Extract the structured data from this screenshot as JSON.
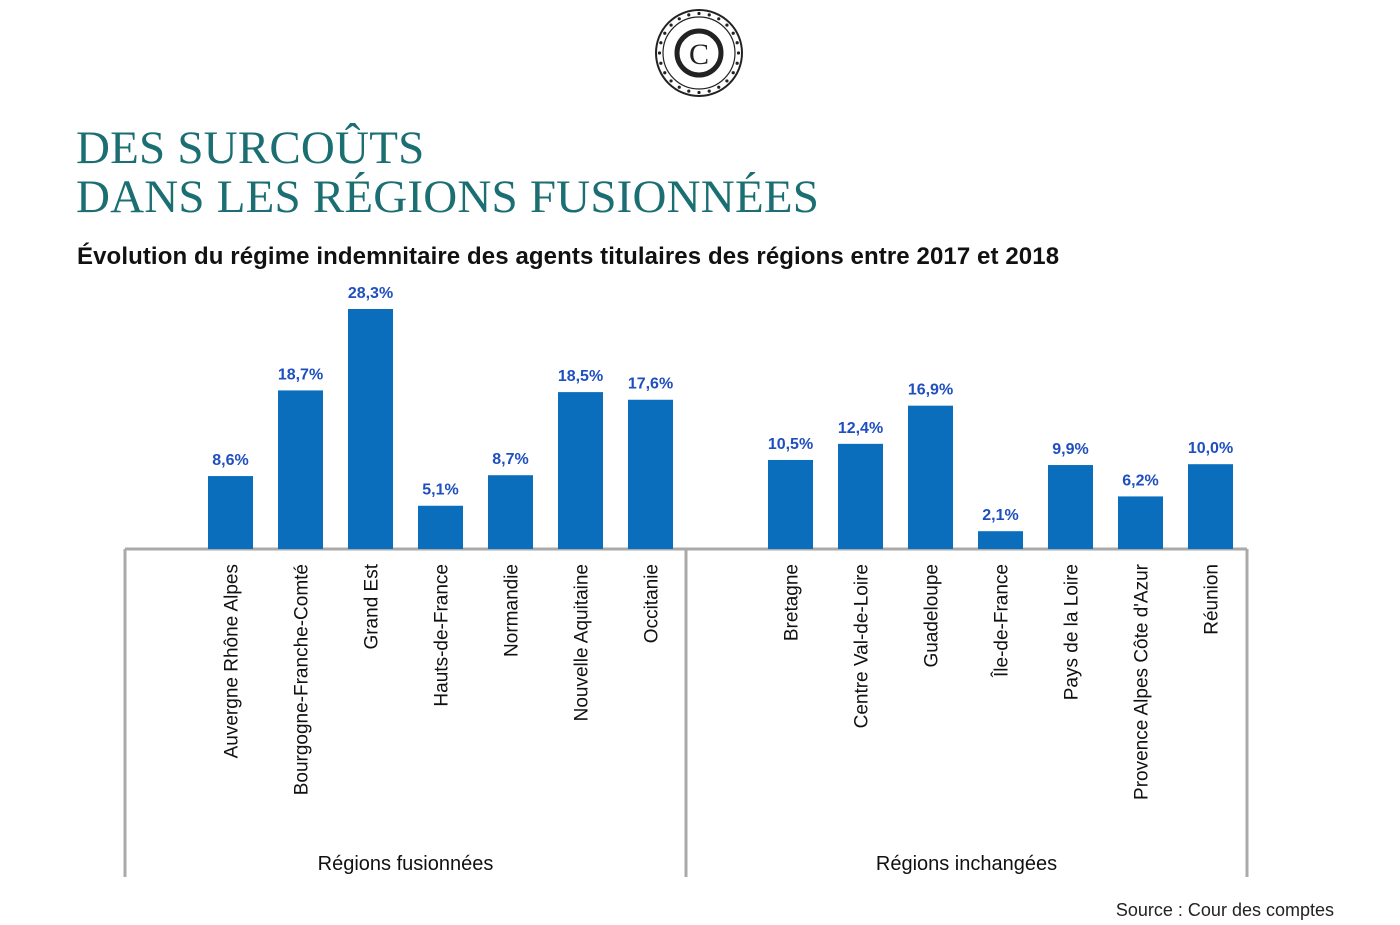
{
  "logo": {
    "letter": "C",
    "icon": "cour-des-comptes-seal-icon"
  },
  "title": {
    "line1": "DES SURCOÛTS",
    "line2": "DANS LES RÉGIONS FUSIONNÉES"
  },
  "subtitle": "Évolution du régime indemnitaire des agents titulaires des régions entre 2017 et 2018",
  "source": "Source : Cour des comptes",
  "colors": {
    "bar": "#0a6ebd",
    "value_label": "#1f4fbf",
    "title": "#1b6f73",
    "axis": "#aaaaaa"
  },
  "chart_data": {
    "type": "bar",
    "ylim": [
      0,
      30
    ],
    "grid": false,
    "groups": [
      {
        "name": "Régions fusionnées",
        "categories": [
          "Auvergne Rhône Alpes",
          "Bourgogne-Franche-Comté",
          "Grand Est",
          "Hauts-de-France",
          "Normandie",
          "Nouvelle Aquitaine",
          "Occitanie"
        ],
        "values": [
          8.6,
          18.7,
          28.3,
          5.1,
          8.7,
          18.5,
          17.6
        ],
        "labels": [
          "8,6%",
          "18,7%",
          "28,3%",
          "5,1%",
          "8,7%",
          "18,5%",
          "17,6%"
        ]
      },
      {
        "name": "Régions inchangées",
        "categories": [
          "Bretagne",
          "Centre Val-de-Loire",
          "Guadeloupe",
          "Île-de-France",
          "Pays de la Loire",
          "Provence Alpes Côte d'Azur",
          "Réunion"
        ],
        "values": [
          10.5,
          12.4,
          16.9,
          2.1,
          9.9,
          6.2,
          10.0
        ],
        "labels": [
          "10,5%",
          "12,4%",
          "16,9%",
          "2,1%",
          "9,9%",
          "6,2%",
          "10,0%"
        ]
      }
    ]
  }
}
